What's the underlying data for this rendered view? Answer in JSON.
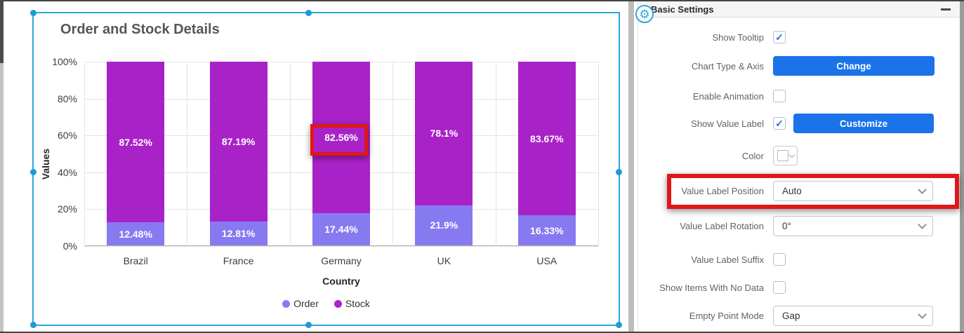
{
  "colors": {
    "selection_border": "#2aa7dc",
    "accent_blue": "#1a73e8",
    "highlight_red": "#e01717",
    "order_series": "#877af1",
    "stock_series": "#a922c8"
  },
  "icons": {
    "gear": "⚙",
    "check": "✓"
  },
  "chart_widget": {
    "title": "Order and Stock Details",
    "x_axis_title": "Country",
    "y_axis_title": "Values"
  },
  "chart_data": {
    "type": "bar",
    "stacked": true,
    "stacking": "percent",
    "title": "Order and Stock Details",
    "xlabel": "Country",
    "ylabel": "Values",
    "categories": [
      "Brazil",
      "France",
      "Germany",
      "UK",
      "USA"
    ],
    "series": [
      {
        "name": "Order",
        "color": "#877af1",
        "values": [
          12.48,
          12.81,
          17.44,
          21.9,
          16.33
        ],
        "labels": [
          "12.48%",
          "12.81%",
          "17.44%",
          "21.9%",
          "16.33%"
        ]
      },
      {
        "name": "Stock",
        "color": "#a922c8",
        "values": [
          87.52,
          87.19,
          82.56,
          78.1,
          83.67
        ],
        "labels": [
          "87.52%",
          "87.19%",
          "82.56%",
          "78.1%",
          "83.67%"
        ]
      }
    ],
    "ylim": [
      0,
      100
    ],
    "y_ticks": [
      "0%",
      "20%",
      "40%",
      "60%",
      "80%",
      "100%"
    ],
    "grid": true,
    "legend_position": "bottom",
    "annotations": [
      "red box around Germany stock label 82.56%"
    ]
  },
  "settings_panel": {
    "header": "Basic Settings",
    "rows": [
      {
        "label": "Show Tooltip",
        "control": "checkbox",
        "checked": true
      },
      {
        "label": "Chart Type & Axis",
        "control": "button",
        "button_label": "Change"
      },
      {
        "label": "Enable Animation",
        "control": "checkbox",
        "checked": false
      },
      {
        "label": "Show Value Label",
        "control": "checkbox_button",
        "checked": true,
        "button_label": "Customize"
      },
      {
        "label": "Color",
        "control": "color_picker",
        "value": ""
      },
      {
        "label": "Value Label Position",
        "control": "dropdown",
        "value": "Auto",
        "highlighted": true
      },
      {
        "label": "Value Label Rotation",
        "control": "dropdown",
        "value": "0°"
      },
      {
        "label": "Value Label Suffix",
        "control": "checkbox",
        "checked": false
      },
      {
        "label": "Show Items With No Data",
        "control": "checkbox",
        "checked": false
      },
      {
        "label": "Empty Point Mode",
        "control": "dropdown",
        "value": "Gap"
      }
    ]
  }
}
